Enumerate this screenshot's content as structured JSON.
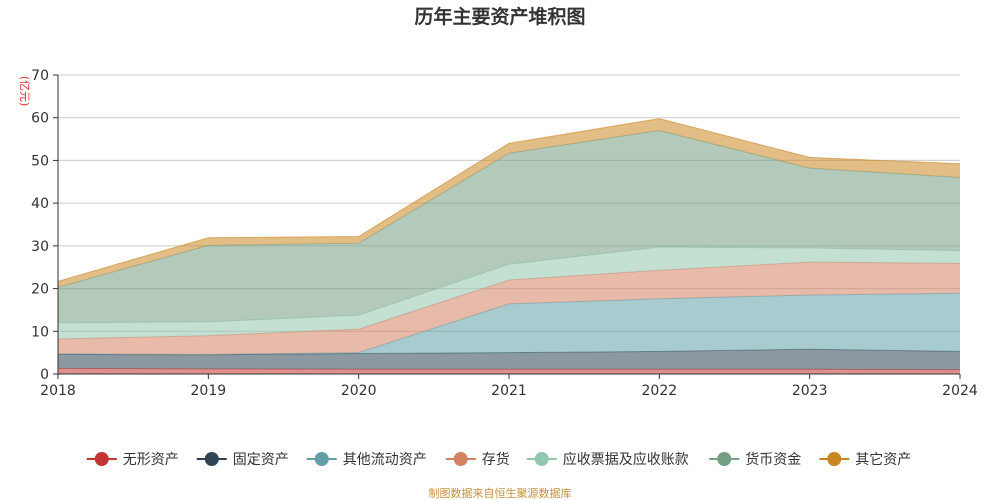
{
  "chart_data": {
    "type": "area",
    "stacked": true,
    "title": "历年主要资产堆积图",
    "unit_label": "(亿元)",
    "x": [
      "2018",
      "2019",
      "2020",
      "2021",
      "2022",
      "2023",
      "2024"
    ],
    "ylim": [
      0,
      70
    ],
    "yticks": [
      "0",
      "10",
      "20",
      "30",
      "40",
      "50",
      "60",
      "70"
    ],
    "grid": true,
    "legend_position": "bottom",
    "series": [
      {
        "name": "无形资产",
        "color": "#c23531",
        "values": [
          1.3,
          1.2,
          1.1,
          1.1,
          1.1,
          1.1,
          1.0
        ]
      },
      {
        "name": "固定资产",
        "color": "#2f4554",
        "values": [
          3.3,
          3.3,
          3.7,
          3.9,
          4.2,
          4.7,
          4.3
        ]
      },
      {
        "name": "其他流动资产",
        "color": "#61a0a8",
        "values": [
          0.1,
          0.1,
          0.2,
          11.4,
          12.3,
          12.7,
          13.6
        ]
      },
      {
        "name": "存货",
        "color": "#d48265",
        "values": [
          3.5,
          4.4,
          5.5,
          5.6,
          6.7,
          7.7,
          7.0
        ]
      },
      {
        "name": "应收票据及应收账款",
        "color": "#91c7ae",
        "values": [
          3.8,
          3.2,
          3.3,
          3.7,
          5.4,
          3.3,
          3.0
        ]
      },
      {
        "name": "货币资金",
        "color": "#749f83",
        "values": [
          8.3,
          17.9,
          16.8,
          26.0,
          27.3,
          18.7,
          17.1
        ]
      },
      {
        "name": "其它资产",
        "color": "#ca8622",
        "values": [
          1.4,
          1.8,
          1.6,
          2.3,
          2.8,
          2.5,
          3.2
        ]
      }
    ],
    "source": "制图数据来自恒生聚源数据库"
  }
}
